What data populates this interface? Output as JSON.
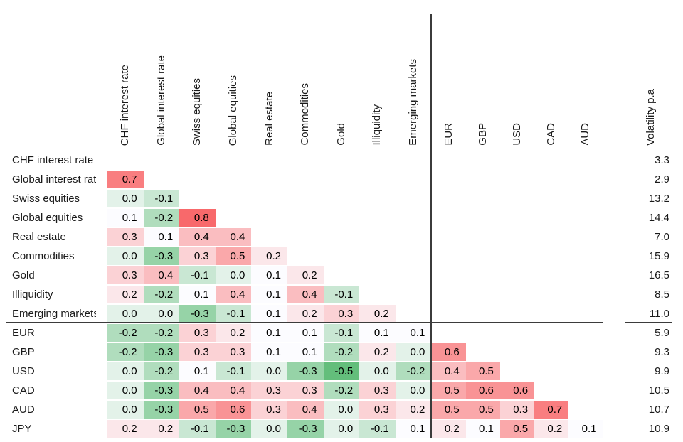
{
  "page": {
    "background": "#ffffff"
  },
  "chart_data": {
    "type": "heatmap",
    "title": "",
    "legend_position": "none",
    "grid": false,
    "rows": [
      "CHF interest rate",
      "Global interest rate",
      "Swiss equities",
      "Global equities",
      "Real estate",
      "Commodities",
      "Gold",
      "Illiquidity",
      "Emerging markets",
      "EUR",
      "GBP",
      "USD",
      "CAD",
      "AUD",
      "JPY"
    ],
    "columns": [
      "CHF interest rate",
      "Global interest rate",
      "Swiss equities",
      "Global equities",
      "Real estate",
      "Commodities",
      "Gold",
      "Illiquidity",
      "Emerging markets",
      "EUR",
      "GBP",
      "USD",
      "CAD",
      "AUD"
    ],
    "matrix_lower_triangular": [
      [],
      [
        0.7
      ],
      [
        0.0,
        -0.1
      ],
      [
        0.1,
        -0.2,
        0.8
      ],
      [
        0.3,
        0.1,
        0.4,
        0.4
      ],
      [
        0.0,
        -0.3,
        0.3,
        0.5,
        0.2
      ],
      [
        0.3,
        0.4,
        -0.1,
        0.0,
        0.1,
        0.2
      ],
      [
        0.2,
        -0.2,
        0.1,
        0.4,
        0.1,
        0.4,
        -0.1
      ],
      [
        0.0,
        0.0,
        -0.3,
        -0.1,
        0.1,
        0.2,
        0.3,
        0.2
      ],
      [
        -0.2,
        -0.2,
        0.3,
        0.2,
        0.1,
        0.1,
        -0.1,
        0.1,
        0.1
      ],
      [
        -0.2,
        -0.3,
        0.3,
        0.3,
        0.1,
        0.1,
        -0.2,
        0.2,
        0.0,
        0.6
      ],
      [
        0.0,
        -0.2,
        0.1,
        -0.1,
        0.0,
        -0.3,
        -0.5,
        0.0,
        -0.2,
        0.4,
        0.5
      ],
      [
        0.0,
        -0.3,
        0.4,
        0.4,
        0.3,
        0.3,
        -0.2,
        0.3,
        0.0,
        0.5,
        0.6,
        0.6
      ],
      [
        0.0,
        -0.3,
        0.5,
        0.6,
        0.3,
        0.4,
        0.0,
        0.3,
        0.2,
        0.5,
        0.5,
        0.3,
        0.7
      ],
      [
        0.2,
        0.2,
        -0.1,
        -0.3,
        0.0,
        -0.3,
        0.0,
        -0.1,
        0.1,
        0.2,
        0.1,
        0.5,
        0.2,
        0.1
      ]
    ],
    "volatility_column": {
      "header": "Volatility p.a",
      "values": [
        3.3,
        2.9,
        13.2,
        14.4,
        7.0,
        15.9,
        16.5,
        8.5,
        11.0,
        5.9,
        9.3,
        9.9,
        10.5,
        10.7,
        10.9
      ]
    },
    "value_format": "one_decimal",
    "color_scale": {
      "min": {
        "value": -0.5,
        "color": "#63BE7B"
      },
      "mid": {
        "value": 0.1,
        "color": "#FCFCFF"
      },
      "max": {
        "value": 0.8,
        "color": "#F8696B"
      }
    },
    "separators": {
      "vertical_after_column": "Emerging markets",
      "horizontal_after_row": "Emerging markets"
    }
  }
}
